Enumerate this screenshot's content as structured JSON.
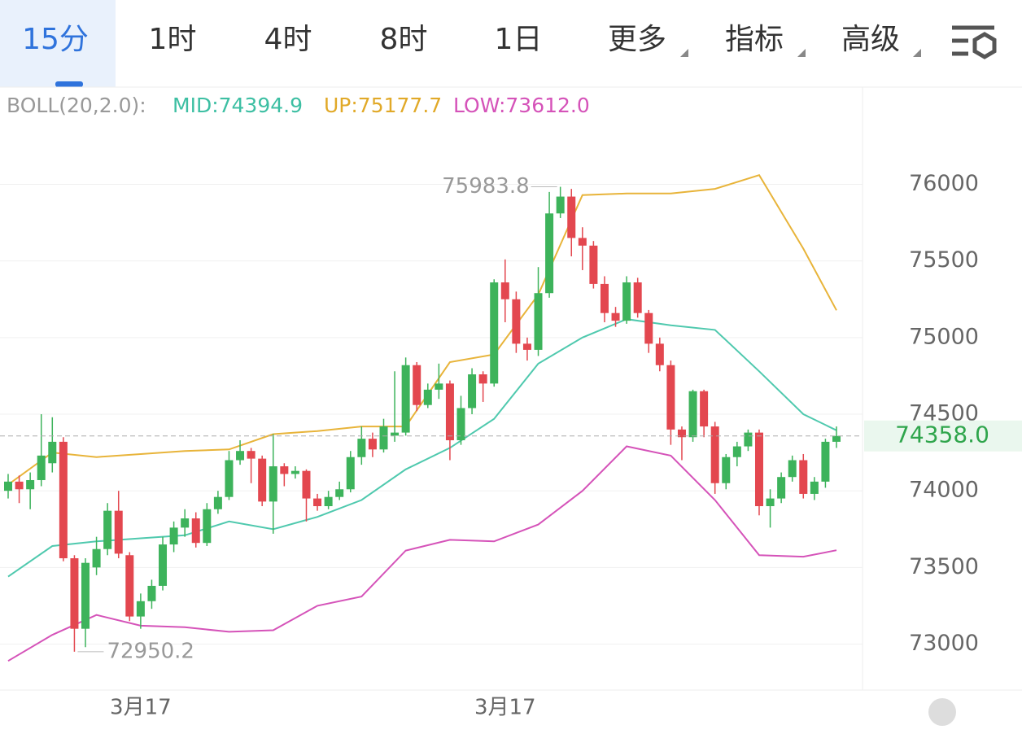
{
  "tabs": [
    "15分",
    "1时",
    "4时",
    "8时",
    "1日",
    "更多",
    "指标",
    "高级"
  ],
  "chart_data": {
    "type": "candlestick",
    "indicator": {
      "name": "BOLL(20,2.0):",
      "mid": "MID:74394.9",
      "up": "UP:75177.7",
      "low": "LOW:73612.0"
    },
    "high_label": "75983.8",
    "low_label": "72950.2",
    "last_label": "74358.0",
    "up_color": "#3db35b",
    "down_color": "#e3474f",
    "categories": [
      null,
      null,
      null,
      null,
      null,
      null,
      null,
      null,
      null,
      null,
      null,
      null,
      "3月17",
      null,
      null,
      null,
      null,
      null,
      null,
      null,
      null,
      null,
      null,
      null,
      null,
      null,
      null,
      null,
      null,
      null,
      null,
      null,
      null,
      null,
      null,
      null,
      null,
      null,
      null,
      null,
      null,
      null,
      null,
      null,
      null,
      "3月17",
      null,
      null,
      null,
      null,
      null,
      null,
      null,
      null,
      null,
      null,
      null,
      null,
      null,
      null,
      null,
      null,
      null,
      null,
      null,
      null,
      null,
      null,
      null,
      null,
      null,
      null,
      null,
      null,
      null,
      null
    ],
    "open": [
      74000,
      74060,
      74010,
      74070,
      74180,
      74320,
      73560,
      73100,
      73500,
      73620,
      73870,
      73580,
      73180,
      73280,
      73380,
      73650,
      73760,
      73820,
      73660,
      73880,
      73960,
      74200,
      74260,
      74210,
      73930,
      74160,
      74110,
      74130,
      73950,
      73900,
      73960,
      74010,
      74220,
      74340,
      74270,
      74360,
      74380,
      74820,
      74560,
      74660,
      74700,
      74330,
      74540,
      74760,
      74700,
      75360,
      75250,
      74960,
      74920,
      75290,
      75810,
      75920,
      75650,
      75600,
      75350,
      75160,
      75110,
      75360,
      75160,
      74960,
      74820,
      74400,
      74350,
      74650,
      74420,
      74050,
      74220,
      74290,
      74380,
      73900,
      73950,
      74090,
      74200,
      73980,
      74060,
      74320
    ],
    "close": [
      74060,
      74010,
      74070,
      74230,
      74320,
      73560,
      73100,
      73530,
      73620,
      73870,
      73590,
      73180,
      73280,
      73380,
      73650,
      73760,
      73820,
      73660,
      73880,
      73960,
      74200,
      74260,
      74210,
      73930,
      74160,
      74110,
      74130,
      73950,
      73900,
      73960,
      74010,
      74220,
      74340,
      74270,
      74420,
      74380,
      74820,
      74560,
      74660,
      74700,
      74330,
      74540,
      74760,
      74700,
      75360,
      75250,
      74960,
      74920,
      75290,
      75810,
      75920,
      75650,
      75600,
      75350,
      75160,
      75110,
      75360,
      75160,
      74960,
      74820,
      74400,
      74350,
      74650,
      74420,
      74050,
      74220,
      74290,
      74380,
      73900,
      73950,
      74090,
      74200,
      73980,
      74060,
      74320,
      74358
    ],
    "high": [
      74110,
      74100,
      74120,
      74500,
      74480,
      74350,
      73580,
      73560,
      73700,
      73920,
      74000,
      73600,
      73330,
      73420,
      73700,
      73800,
      73880,
      73860,
      73920,
      74000,
      74260,
      74330,
      74280,
      74230,
      74370,
      74180,
      74160,
      74140,
      73980,
      74000,
      74060,
      74260,
      74420,
      74380,
      74470,
      74780,
      74870,
      74840,
      74700,
      74830,
      74720,
      74620,
      74800,
      74780,
      75380,
      75510,
      75300,
      75000,
      75460,
      75950,
      75983.8,
      75970,
      75720,
      75630,
      75400,
      75200,
      75400,
      75390,
      75180,
      75000,
      74850,
      74420,
      74660,
      74660,
      74450,
      74240,
      74320,
      74400,
      74400,
      74010,
      74120,
      74230,
      74240,
      74090,
      74340,
      74420
    ],
    "low": [
      73950,
      73920,
      73880,
      74030,
      74120,
      73540,
      72950.2,
      72980,
      73450,
      73580,
      73560,
      73150,
      73100,
      73230,
      73350,
      73600,
      73700,
      73630,
      73640,
      73850,
      73940,
      74170,
      74050,
      73900,
      73720,
      74030,
      74080,
      73800,
      73870,
      73880,
      73940,
      73990,
      74170,
      74220,
      74250,
      74320,
      74360,
      74520,
      74540,
      74600,
      74200,
      74300,
      74500,
      74580,
      74680,
      75100,
      74900,
      74850,
      74880,
      75260,
      75780,
      75530,
      75440,
      75320,
      75100,
      75070,
      75090,
      75130,
      74900,
      74780,
      74300,
      74200,
      74320,
      74350,
      73980,
      74010,
      74160,
      74260,
      73840,
      73760,
      73920,
      74060,
      73950,
      73940,
      74020,
      74280
    ],
    "bands": [
      {
        "color": "#4fc9ae",
        "x": [
          0,
          4,
          8,
          12,
          16,
          20,
          24,
          28,
          32,
          36,
          40,
          44,
          48,
          52,
          56,
          60,
          64,
          68,
          72,
          75
        ],
        "values": [
          73440,
          73640,
          73670,
          73690,
          73710,
          73800,
          73750,
          73830,
          73940,
          74140,
          74280,
          74470,
          74830,
          75000,
          75120,
          75080,
          75050,
          74780,
          74500,
          74395
        ]
      },
      {
        "color": "#e8b43a",
        "x": [
          0,
          4,
          8,
          12,
          16,
          20,
          24,
          28,
          32,
          36,
          40,
          44,
          48,
          52,
          56,
          60,
          64,
          68,
          72,
          75
        ],
        "values": [
          74040,
          74250,
          74220,
          74240,
          74260,
          74270,
          74370,
          74390,
          74420,
          74420,
          74840,
          74890,
          75280,
          75930,
          75940,
          75940,
          75970,
          76060,
          75580,
          75178
        ]
      },
      {
        "color": "#d553b9",
        "x": [
          0,
          4,
          8,
          12,
          16,
          20,
          24,
          28,
          32,
          36,
          40,
          44,
          48,
          52,
          56,
          60,
          64,
          68,
          72,
          75
        ],
        "values": [
          72890,
          73060,
          73190,
          73120,
          73110,
          73080,
          73090,
          73250,
          73310,
          73610,
          73680,
          73670,
          73780,
          74000,
          74290,
          74230,
          73940,
          73580,
          73570,
          73612
        ]
      }
    ],
    "ylim": [
      72700,
      76300
    ],
    "yticks": [
      73000,
      73500,
      74000,
      74500,
      75000,
      75500,
      76000
    ],
    "grid": true
  }
}
